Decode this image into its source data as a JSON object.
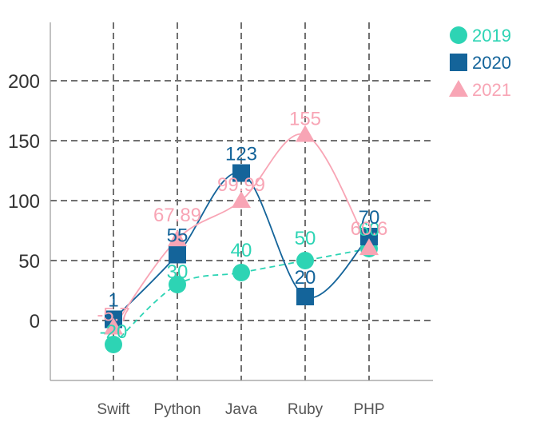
{
  "chart_data": {
    "type": "line",
    "categories": [
      "Swift",
      "Python",
      "Java",
      "Ruby",
      "PHP"
    ],
    "ylim": [
      -50,
      250
    ],
    "yticks": [
      0,
      50,
      100,
      150,
      200
    ],
    "grid": true,
    "grid_style": "dashed",
    "legend_position": "top-right",
    "series": [
      {
        "name": "2019",
        "color": "#2dd4b4",
        "marker": "circle",
        "line": "dashed",
        "curve": "smooth",
        "values": [
          -20,
          30,
          40,
          50,
          60
        ],
        "labels": [
          "-20",
          "30",
          "40",
          "50",
          "60"
        ]
      },
      {
        "name": "2020",
        "color": "#14649a",
        "marker": "square",
        "line": "solid",
        "curve": "smooth",
        "values": [
          1,
          55,
          123,
          20,
          70
        ],
        "labels": [
          "1",
          "55",
          "123",
          "20",
          "70"
        ]
      },
      {
        "name": "2021",
        "color": "#f8a5b5",
        "marker": "triangle",
        "line": "solid",
        "curve": "smooth",
        "values": [
          -5.7,
          67.89,
          99.99,
          155,
          60.6
        ],
        "labels": [
          "-5.7",
          "67.89",
          "99.99",
          "155",
          "60.6"
        ]
      }
    ]
  }
}
